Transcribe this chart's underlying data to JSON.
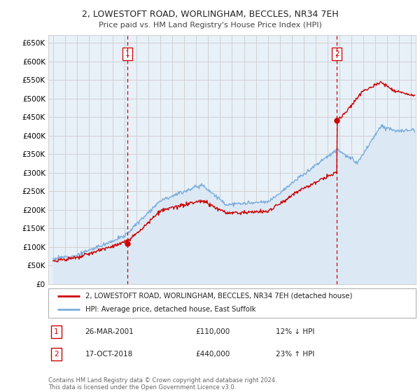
{
  "title": "2, LOWESTOFT ROAD, WORLINGHAM, BECCLES, NR34 7EH",
  "subtitle": "Price paid vs. HM Land Registry's House Price Index (HPI)",
  "ytick_labels": [
    "£0",
    "£50K",
    "£100K",
    "£150K",
    "£200K",
    "£250K",
    "£300K",
    "£350K",
    "£400K",
    "£450K",
    "£500K",
    "£550K",
    "£600K",
    "£650K"
  ],
  "yticks": [
    0,
    50000,
    100000,
    150000,
    200000,
    250000,
    300000,
    350000,
    400000,
    450000,
    500000,
    550000,
    600000,
    650000
  ],
  "ylim": [
    0,
    670000
  ],
  "xlim_left": 1994.6,
  "xlim_right": 2025.4,
  "legend_line1": "2, LOWESTOFT ROAD, WORLINGHAM, BECCLES, NR34 7EH (detached house)",
  "legend_line2": "HPI: Average price, detached house, East Suffolk",
  "transaction1_date": "26-MAR-2001",
  "transaction1_price": "£110,000",
  "transaction1_hpi": "12% ↓ HPI",
  "transaction1_x": 2001.22,
  "transaction1_y": 110000,
  "transaction2_date": "17-OCT-2018",
  "transaction2_price": "£440,000",
  "transaction2_hpi": "23% ↑ HPI",
  "transaction2_x": 2018.79,
  "transaction2_y": 440000,
  "footnote": "Contains HM Land Registry data © Crown copyright and database right 2024.\nThis data is licensed under the Open Government Licence v3.0.",
  "red_color": "#cc0000",
  "blue_color": "#7aaddb",
  "blue_fill": "#dce9f5",
  "dashed_color": "#cc0000",
  "grid_color": "#cccccc",
  "bg_color": "#ffffff",
  "plot_bg": "#e8f0f8"
}
